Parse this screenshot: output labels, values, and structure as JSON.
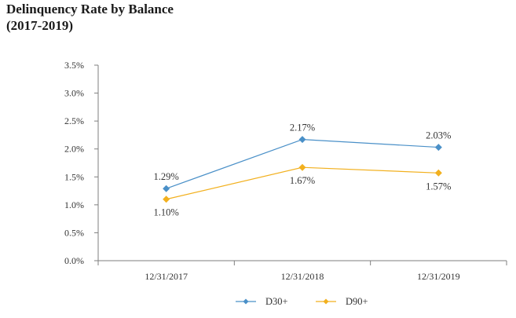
{
  "chart_data": {
    "type": "line",
    "title_line1": "Delinquency Rate by Balance",
    "title_line2": "(2017-2019)",
    "categories": [
      "12/31/2017",
      "12/31/2018",
      "12/31/2019"
    ],
    "y_ticks": [
      "0.0%",
      "0.5%",
      "1.0%",
      "1.5%",
      "2.0%",
      "2.5%",
      "3.0%",
      "3.5%"
    ],
    "ylim": [
      0,
      3.5
    ],
    "unit": "%",
    "grid": false,
    "legend_position": "bottom",
    "series": [
      {
        "name": "D30+",
        "values": [
          1.29,
          2.17,
          2.03
        ],
        "labels": [
          "1.29%",
          "2.17%",
          "2.03%"
        ],
        "label_position": "above",
        "color": "#4a90c8",
        "marker": "diamond"
      },
      {
        "name": "D90+",
        "values": [
          1.1,
          1.67,
          1.57
        ],
        "labels": [
          "1.10%",
          "1.67%",
          "1.57%"
        ],
        "label_position": "below",
        "color": "#f2b01e",
        "marker": "diamond"
      }
    ]
  }
}
